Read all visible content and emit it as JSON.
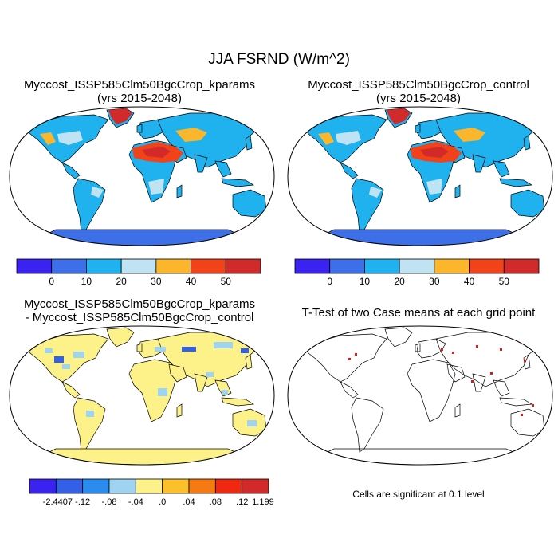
{
  "title": "JJA FSRND (W/m^2)",
  "panels": [
    {
      "title_line1": "Myccost_ISSP585Clm50BgcCrop_kparams",
      "title_line2": "(yrs 2015-2048)"
    },
    {
      "title_line1": "Myccost_ISSP585Clm50BgcCrop_control",
      "title_line2": "(yrs 2015-2048)"
    },
    {
      "title_line1": "Myccost_ISSP585Clm50BgcCrop_kparams",
      "title_line2": "- Myccost_ISSP585Clm50BgcCrop_control"
    },
    {
      "title_line1": "T-Test of two Case means at each grid point",
      "title_line2": ""
    }
  ],
  "colorbar_top": {
    "colors": [
      "#3a22f0",
      "#3d6fe8",
      "#1fb2ef",
      "#bfe3f2",
      "#fbb62b",
      "#f2421a",
      "#d22a2a"
    ],
    "labels": [
      "0",
      "10",
      "20",
      "30",
      "40",
      "50"
    ]
  },
  "colorbar_diff": {
    "colors": [
      "#3a22f0",
      "#3460e8",
      "#2a8cef",
      "#9fd3f2",
      "#fdf28a",
      "#fbc02a",
      "#f67a12",
      "#f02810",
      "#d22a2a"
    ],
    "labels": [
      "-2.4407",
      "-.12",
      "-.08",
      "-.04",
      ".0",
      ".04",
      ".08",
      ".12",
      "1.1993"
    ]
  },
  "ttest_note": "Cells are significant at 0.1 level",
  "map_colors": {
    "ocean": "#ffffff",
    "land": "#1fb2ef",
    "light": "#bfe3f2",
    "orange": "#fbb62b",
    "red": "#f2421a",
    "darkred": "#d22a2a",
    "antarctica": "#3d6fe8",
    "diff_land": "#fdf28a",
    "diff_light": "#9fd3f2",
    "diff_blue": "#3460e8",
    "sig": "#e01818"
  }
}
